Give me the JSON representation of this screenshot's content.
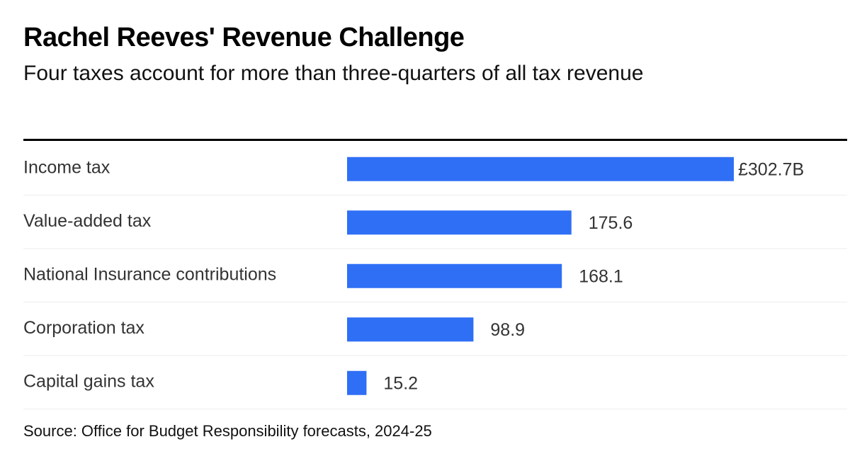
{
  "header": {
    "title": "Rachel Reeves' Revenue Challenge",
    "subtitle": "Four taxes account for more than three-quarters of all tax revenue"
  },
  "chart_data": {
    "type": "bar",
    "orientation": "horizontal",
    "categories": [
      "Income tax",
      "Value-added tax",
      "National Insurance contributions",
      "Corporation tax",
      "Capital gains tax"
    ],
    "values": [
      302.7,
      175.6,
      168.1,
      98.9,
      15.2
    ],
    "value_labels": [
      "£302.7B",
      "175.6",
      "168.1",
      "98.9",
      "15.2"
    ],
    "bar_color": "#2f6ff5",
    "grid": false,
    "legend": "none"
  },
  "footer": {
    "source": "Source: Office for Budget Responsibility forecasts, 2024-25"
  },
  "colors": {
    "bar": "#2f6ff5",
    "row_divider": "#eeeeee",
    "category_text": "#333333",
    "value_text": "#333333"
  }
}
